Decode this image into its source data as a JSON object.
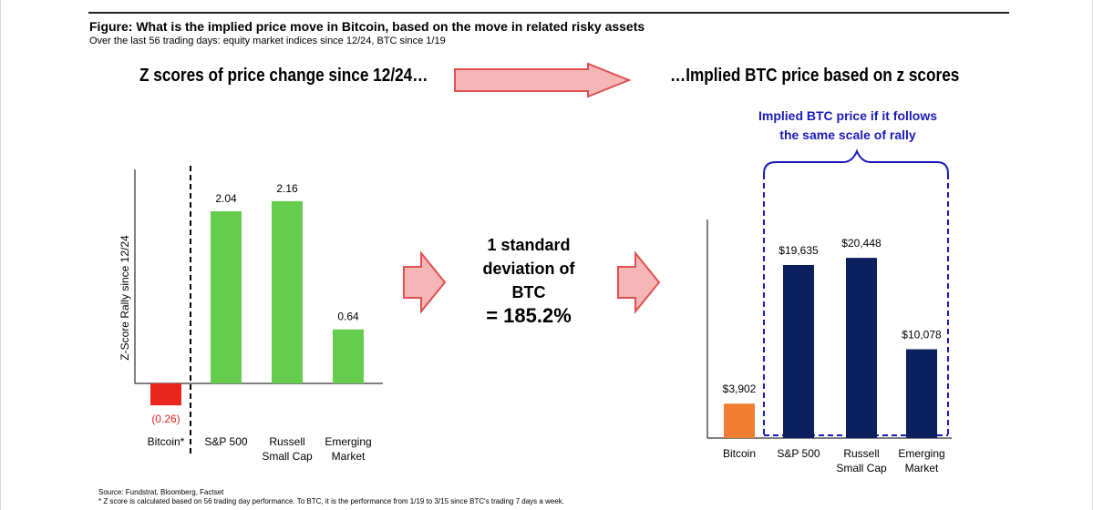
{
  "header": {
    "title": "Figure: What is the implied price move in Bitcoin, based on the move in related risky assets",
    "subtitle": "Over the last 56 trading days: equity market indices since 12/24, BTC since 1/19"
  },
  "left_heading": "Z scores of price change since 12/24…",
  "right_heading": "…Implied BTC price based on z scores",
  "brace_note": [
    "Implied BTC price if it follows",
    "the same scale of rally"
  ],
  "middle_note": {
    "lines": [
      "1 standard",
      "deviation of",
      "BTC"
    ],
    "value": "= 185.2%"
  },
  "colors": {
    "green": "#66cc4e",
    "red": "#e8251c",
    "orange": "#f07d31",
    "navy": "#0c1f5e",
    "blue_dash": "#1a1ab8",
    "arrow_fill": "#f4b6b6",
    "arrow_stroke": "#e05050"
  },
  "chart_data": [
    {
      "type": "bar",
      "title": "Z scores of price change since 12/24…",
      "ylabel": "Z-Score Rally since 12/24",
      "categories": [
        "Bitcoin*",
        "S&P 500",
        "Russell Small Cap",
        "Emerging Market"
      ],
      "category_lines": [
        [
          "Bitcoin*"
        ],
        [
          "S&P 500"
        ],
        [
          "Russell",
          "Small Cap"
        ],
        [
          "Emerging",
          "Market"
        ]
      ],
      "values": [
        -0.26,
        2.04,
        2.16,
        0.64
      ],
      "value_labels": [
        "(0.26)",
        "2.04",
        "2.16",
        "0.64"
      ],
      "ylim": [
        -0.4,
        2.4
      ]
    },
    {
      "type": "bar",
      "title": "…Implied BTC price based on z scores",
      "ylabel": "",
      "categories": [
        "Bitcoin",
        "S&P 500",
        "Russell Small Cap",
        "Emerging Market"
      ],
      "category_lines": [
        [
          "Bitcoin"
        ],
        [
          "S&P 500"
        ],
        [
          "Russell",
          "Small Cap"
        ],
        [
          "Emerging",
          "Market"
        ]
      ],
      "values": [
        3902,
        19635,
        20448,
        10078
      ],
      "value_labels": [
        "$3,902",
        "$19,635",
        "$20,448",
        "$10,078"
      ],
      "ylim": [
        0,
        25000
      ]
    }
  ],
  "footer": {
    "source": "Source: Fundstrat, Bloomberg, Factset",
    "note": "* Z score is calculated based on 56 trading day performance. To BTC, it is the performance from 1/19 to 3/15 since BTC's trading 7 days a week."
  }
}
